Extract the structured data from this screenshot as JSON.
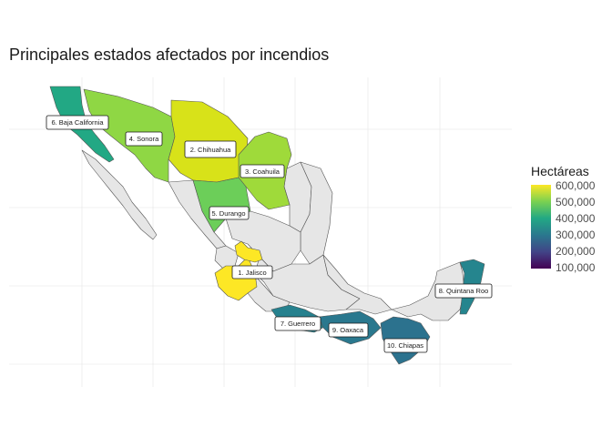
{
  "title": "Principales estados afectados por incendios",
  "legend": {
    "title": "Hectáreas",
    "ticks": [
      "600,000",
      "500,000",
      "400,000",
      "300,000",
      "200,000",
      "100,000"
    ],
    "colors": [
      "#fde725",
      "#7ad151",
      "#22a884",
      "#2a788e",
      "#414487",
      "#440154"
    ],
    "range": [
      50000,
      600000
    ]
  },
  "base_fill": "#e6e6e6",
  "map_data": {
    "variable": "Hectáreas",
    "states": [
      {
        "rank": 1,
        "label": "1. Jalisco",
        "value": 600000,
        "color": "#fde725"
      },
      {
        "rank": 2,
        "label": "2. Chihuahua",
        "value": 560000,
        "color": "#d8e219"
      },
      {
        "rank": 3,
        "label": "3. Coahuila",
        "value": 480000,
        "color": "#9fda3a"
      },
      {
        "rank": 4,
        "label": "4. Sonora",
        "value": 460000,
        "color": "#8fd744"
      },
      {
        "rank": 5,
        "label": "5. Durango",
        "value": 440000,
        "color": "#6cce59"
      },
      {
        "rank": 6,
        "label": "6. Baja California",
        "value": 360000,
        "color": "#22a884"
      },
      {
        "rank": 7,
        "label": "7. Guerrero",
        "value": 310000,
        "color": "#26818e"
      },
      {
        "rank": 8,
        "label": "8. Quintana Roo",
        "value": 310000,
        "color": "#25858e"
      },
      {
        "rank": 9,
        "label": "9. Oaxaca",
        "value": 290000,
        "color": "#2a788e"
      },
      {
        "rank": 10,
        "label": "10. Chiapas",
        "value": 290000,
        "color": "#2c728e"
      }
    ]
  }
}
